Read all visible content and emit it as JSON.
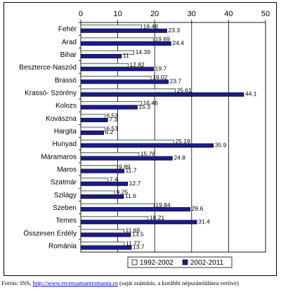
{
  "chart_data": {
    "type": "bar",
    "orientation": "horizontal",
    "categories": [
      "Fehér",
      "Arad",
      "Bihar",
      "Beszterce-Naszód",
      "Brassó",
      "Krassó- Szörény",
      "Kolozs",
      "Kovászna",
      "Hargita",
      "Hunyad",
      "Máramaros",
      "Maros",
      "Szatmár",
      "Szilágy",
      "Szeben",
      "Temes",
      "Összesen Erdély",
      "Románia"
    ],
    "series": [
      {
        "name": "1992-2002",
        "color": "#e8f6f4",
        "values": [
          16.48,
          19.69,
          14.39,
          12.82,
          19.02,
          25.61,
          16.46,
          6.53,
          6.53,
          25.19,
          15.76,
          9.89,
          7.4,
          9.25,
          19.84,
          18.21,
          11.69,
          11.77
        ],
        "labels": [
          "16.48",
          "19.69",
          "14.39",
          "12.82",
          "19.02",
          "25.61",
          "16.46",
          "6.53",
          "6.53",
          "25.19",
          "15.76",
          "9.89",
          "7.4",
          "9.25",
          "19.84",
          "18.21",
          "11.69",
          "11.77"
        ]
      },
      {
        "name": "2002-2011",
        "color": "#1c1a8c",
        "values": [
          23.3,
          24.4,
          11,
          19.7,
          23.7,
          44.1,
          15.3,
          7.3,
          6.2,
          35.9,
          24.8,
          11.7,
          12.7,
          11.6,
          29.6,
          31.4,
          13.5,
          13.7
        ],
        "labels": [
          "23.3",
          "24.4",
          "11",
          "19.7",
          "23.7",
          "44.1",
          "15.3",
          "7.3",
          "6.2",
          "35.9",
          "24.8",
          "11.7",
          "12.7",
          "11.6",
          "29.6",
          "31.4",
          "13.5",
          "13.7"
        ]
      }
    ],
    "xlim": [
      0,
      50
    ],
    "xticks": [
      "0",
      "10",
      "20",
      "30",
      "40",
      "50"
    ],
    "x_axis_position": "top",
    "grid": "vertical",
    "legend_position": "bottom"
  },
  "source": {
    "prefix": "Forrás: INS, ",
    "link_text": "http://www.recensamantromania.ro",
    "suffix": " (saját számítás, a korábbi népszámlálásra vetítve)"
  }
}
